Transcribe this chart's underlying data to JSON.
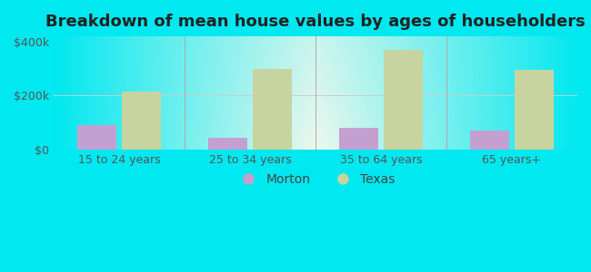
{
  "title": "Breakdown of mean house values by ages of householders",
  "categories": [
    "15 to 24 years",
    "25 to 34 years",
    "35 to 64 years",
    "65 years+"
  ],
  "morton_values": [
    90000,
    45000,
    80000,
    70000
  ],
  "texas_values": [
    215000,
    300000,
    370000,
    295000
  ],
  "morton_color": "#c4a0d0",
  "texas_color": "#c8d4a0",
  "background_color": "#00e8f0",
  "yticks": [
    0,
    200000,
    400000
  ],
  "ylabels": [
    "$0",
    "$200k",
    "$400k"
  ],
  "ylim": [
    0,
    420000
  ],
  "bar_width": 0.3,
  "legend_labels": [
    "Morton",
    "Texas"
  ],
  "title_fontsize": 13,
  "tick_fontsize": 9,
  "legend_fontsize": 10
}
